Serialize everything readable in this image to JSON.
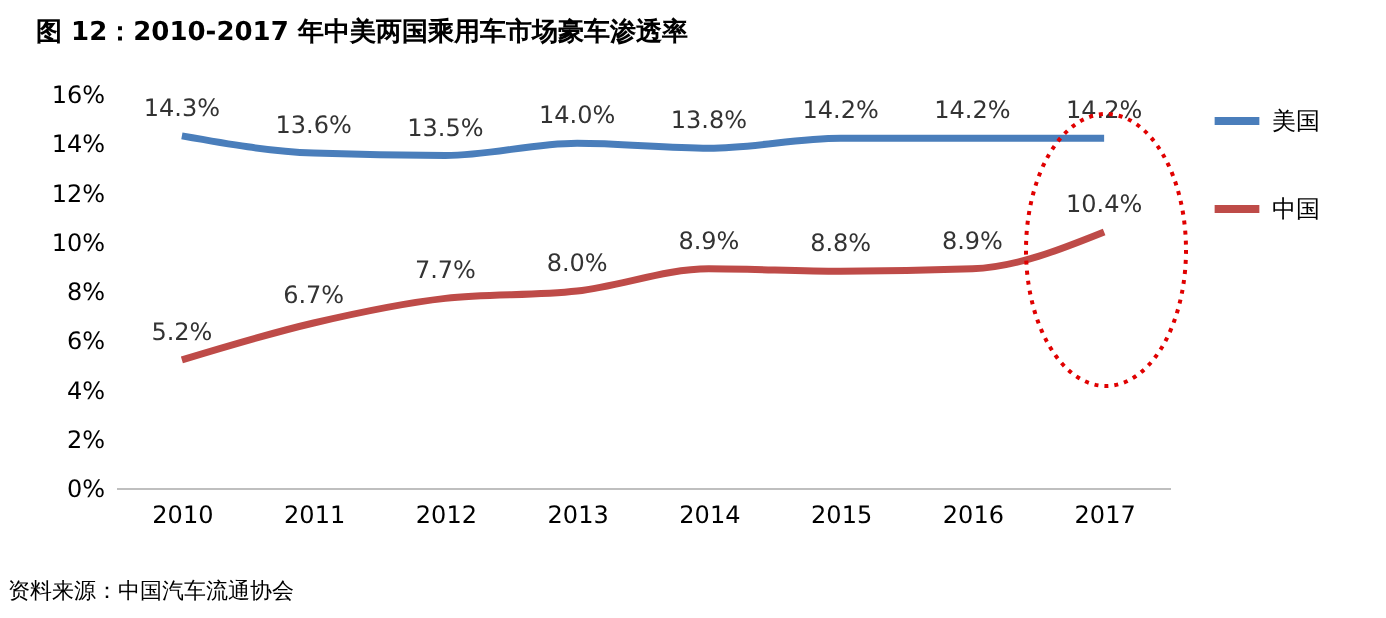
{
  "chart_data": {
    "type": "line",
    "title": "图 12：2010-2017 年中美两国乘用车市场豪车渗透率",
    "categories": [
      "2010",
      "2011",
      "2012",
      "2013",
      "2014",
      "2015",
      "2016",
      "2017"
    ],
    "series": [
      {
        "name": "美国",
        "color": "#4a7ebb",
        "values": [
          14.3,
          13.6,
          13.5,
          14.0,
          13.8,
          14.2,
          14.2,
          14.2
        ],
        "value_labels": [
          "14.3%",
          "13.6%",
          "13.5%",
          "14.0%",
          "13.8%",
          "14.2%",
          "14.2%",
          "14.2%"
        ]
      },
      {
        "name": "中国",
        "color": "#be4b48",
        "values": [
          5.2,
          6.7,
          7.7,
          8.0,
          8.9,
          8.8,
          8.9,
          10.4
        ],
        "value_labels": [
          "5.2%",
          "6.7%",
          "7.7%",
          "8.0%",
          "8.9%",
          "8.8%",
          "8.9%",
          "10.4%"
        ]
      }
    ],
    "ylim": [
      0,
      16
    ],
    "yticks": [
      {
        "value": 0,
        "label": "0%"
      },
      {
        "value": 2,
        "label": "2%"
      },
      {
        "value": 4,
        "label": "4%"
      },
      {
        "value": 6,
        "label": "6%"
      },
      {
        "value": 8,
        "label": "8%"
      },
      {
        "value": 10,
        "label": "10%"
      },
      {
        "value": 12,
        "label": "12%"
      },
      {
        "value": 14,
        "label": "14%"
      },
      {
        "value": 16,
        "label": "16%"
      }
    ],
    "grid": false,
    "legend": "right",
    "marker": "none",
    "line_style": "solid",
    "annotations": [
      "资料来源：中国汽车流通协会"
    ]
  }
}
